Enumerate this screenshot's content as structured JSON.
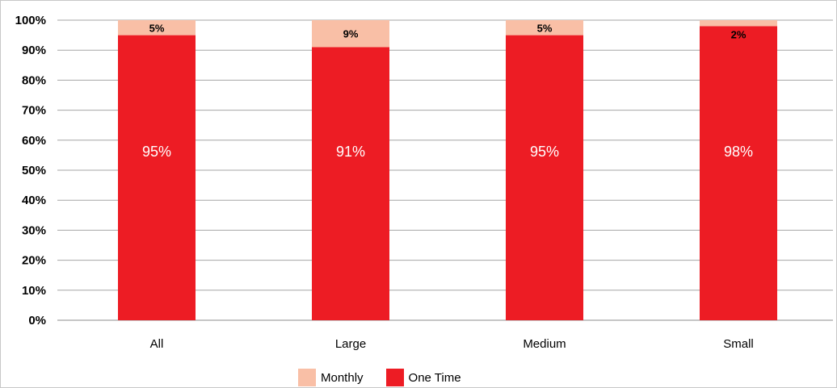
{
  "chart_data": {
    "type": "bar",
    "stacked": true,
    "percent_stacked": true,
    "categories": [
      "All",
      "Large",
      "Medium",
      "Small"
    ],
    "series": [
      {
        "name": "One Time",
        "color": "#ED1C24",
        "values": [
          95,
          91,
          95,
          98
        ],
        "labels": [
          "95%",
          "91%",
          "95%",
          "98%"
        ]
      },
      {
        "name": "Monthly",
        "color": "#F9BFA6",
        "values": [
          5,
          9,
          5,
          2
        ],
        "labels": [
          "5%",
          "9%",
          "5%",
          "2%"
        ]
      }
    ],
    "yticks": [
      "0%",
      "10%",
      "20%",
      "30%",
      "40%",
      "50%",
      "60%",
      "70%",
      "80%",
      "90%",
      "100%"
    ],
    "ylim": [
      0,
      100
    ],
    "grid": true,
    "legend_position": "bottom-center",
    "title": "",
    "xlabel": "",
    "ylabel": ""
  },
  "legend": {
    "items": [
      {
        "label": "Monthly",
        "color": "#F9BFA6"
      },
      {
        "label": "One Time",
        "color": "#ED1C24"
      }
    ]
  }
}
